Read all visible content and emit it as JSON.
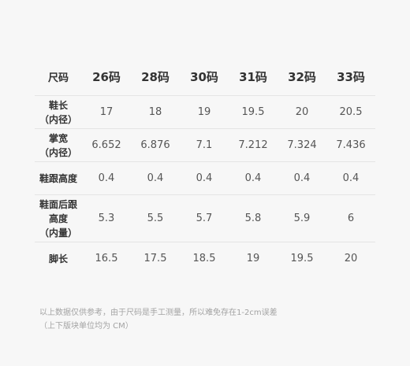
{
  "table": {
    "corner": "尺码",
    "sizes": [
      "26码",
      "28码",
      "30码",
      "31码",
      "32码",
      "33码"
    ],
    "rows": [
      {
        "label": "鞋长\n（内径）",
        "values": [
          "17",
          "18",
          "19",
          "19.5",
          "20",
          "20.5"
        ]
      },
      {
        "label": "掌宽\n（内径）",
        "values": [
          "6.652",
          "6.876",
          "7.1",
          "7.212",
          "7.324",
          "7.436"
        ]
      },
      {
        "label": "鞋跟高度",
        "values": [
          "0.4",
          "0.4",
          "0.4",
          "0.4",
          "0.4",
          "0.4"
        ]
      },
      {
        "label": "鞋面后跟\n高度\n（内量）",
        "values": [
          "5.3",
          "5.5",
          "5.7",
          "5.8",
          "5.9",
          "6"
        ]
      },
      {
        "label": "脚长",
        "values": [
          "16.5",
          "17.5",
          "18.5",
          "19",
          "19.5",
          "20"
        ]
      }
    ]
  },
  "note": {
    "line1": "以上数据仅供参考，由于尺码是手工测量，所以难免存在1-2cm误差",
    "line2": "（上下版块单位均为 CM）"
  }
}
